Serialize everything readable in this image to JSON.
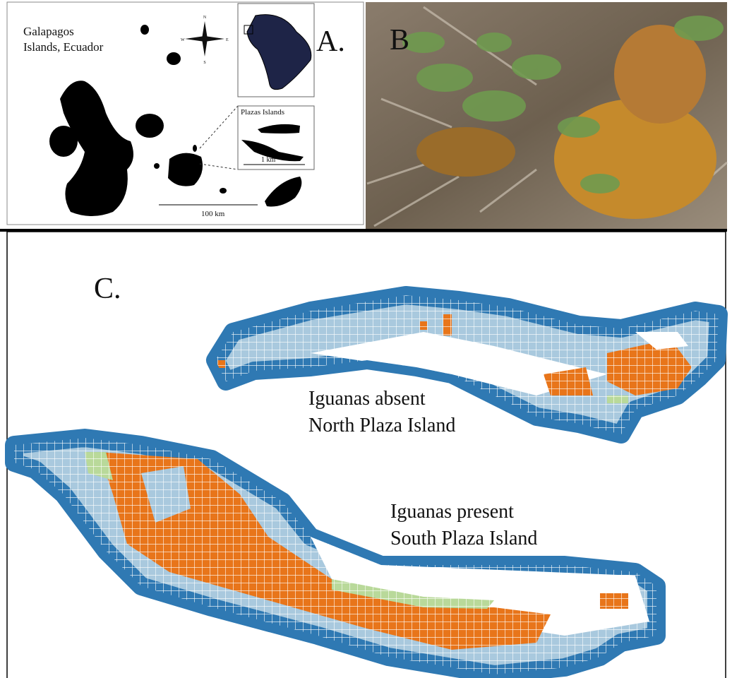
{
  "panel_a": {
    "label": "A.",
    "title_lines": [
      "Galapagos",
      "Islands, Ecuador"
    ],
    "compass": [
      "N",
      "S",
      "E",
      "W"
    ],
    "inset_title": "Plazas Islands",
    "inset_scale": "1 km",
    "scale": "100 km"
  },
  "panel_b": {
    "label": "B"
  },
  "panel_c": {
    "label": "C.",
    "north": [
      "Iguanas absent",
      "North Plaza Island"
    ],
    "south": [
      "Iguanas present",
      "South Plaza Island"
    ]
  }
}
